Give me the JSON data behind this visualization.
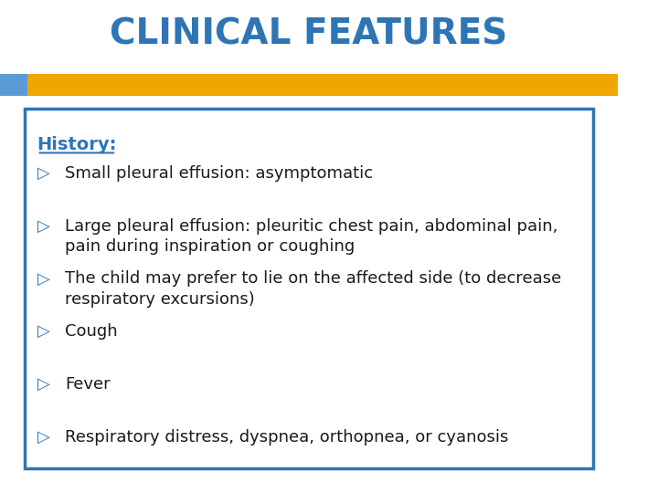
{
  "title": "CLINICAL FEATURES",
  "title_color": "#2E75B6",
  "title_fontsize": 28,
  "background_color": "#FFFFFF",
  "header_bar_color": "#F0A500",
  "header_bar_left_color": "#5B9BD5",
  "box_border_color": "#2E75B6",
  "history_label": "History:",
  "history_color": "#2E75B6",
  "history_fontsize": 14,
  "bullet_color": "#2E75B6",
  "bullet_symbol": "▷",
  "text_color": "#1a1a1a",
  "text_fontsize": 13,
  "bullets": [
    "Small pleural effusion: asymptomatic",
    "Large pleural effusion: pleuritic chest pain, abdominal pain,\npain during inspiration or coughing",
    "The child may prefer to lie on the affected side (to decrease\nrespiratory excursions)",
    "Cough",
    "Fever",
    "Respiratory distress, dyspnea, orthopnea, or cyanosis"
  ]
}
